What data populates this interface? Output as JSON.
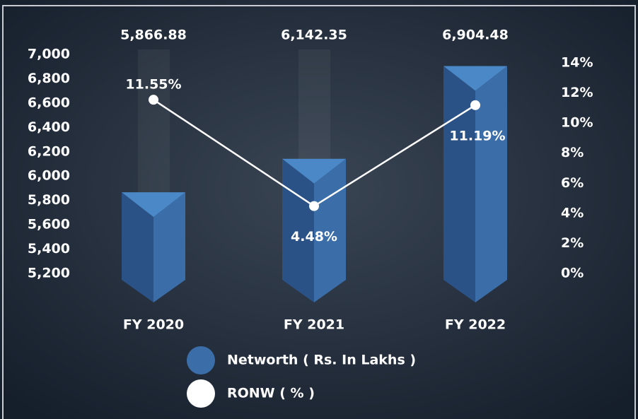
{
  "chart_data": {
    "type": "bar",
    "categories": [
      "FY 2020",
      "FY 2021",
      "FY 2022"
    ],
    "series": [
      {
        "name": "Networth ( Rs. In Lakhs )",
        "type": "bar",
        "color": "#3b6ea8",
        "values": [
          5866.88,
          6142.35,
          6904.48
        ],
        "value_labels": [
          "5,866.88",
          "6,142.35",
          "6,904.48"
        ]
      },
      {
        "name": "RONW ( % )",
        "type": "line",
        "axis": "y2",
        "color": "#ffffff",
        "values": [
          11.55,
          4.48,
          11.19
        ],
        "value_labels": [
          "11.55%",
          "4.48%",
          "11.19%"
        ]
      }
    ],
    "ylim": [
      5200,
      7000
    ],
    "yticks": [
      {
        "value": 5200,
        "label": "5,200"
      },
      {
        "value": 5400,
        "label": "5,400"
      },
      {
        "value": 5600,
        "label": "5,600"
      },
      {
        "value": 5800,
        "label": "5,800"
      },
      {
        "value": 6000,
        "label": "6,000"
      },
      {
        "value": 6200,
        "label": "6,200"
      },
      {
        "value": 6400,
        "label": "6,400"
      },
      {
        "value": 6600,
        "label": "6,600"
      },
      {
        "value": 6800,
        "label": "6,800"
      },
      {
        "value": 7000,
        "label": "7,000"
      }
    ],
    "y2lim": [
      0,
      14
    ],
    "y2ticks": [
      {
        "value": 0,
        "label": "0%"
      },
      {
        "value": 2,
        "label": "2%"
      },
      {
        "value": 4,
        "label": "4%"
      },
      {
        "value": 6,
        "label": "6%"
      },
      {
        "value": 8,
        "label": "8%"
      },
      {
        "value": 10,
        "label": "10%"
      },
      {
        "value": 12,
        "label": "12%"
      },
      {
        "value": 14,
        "label": "14%"
      }
    ]
  }
}
